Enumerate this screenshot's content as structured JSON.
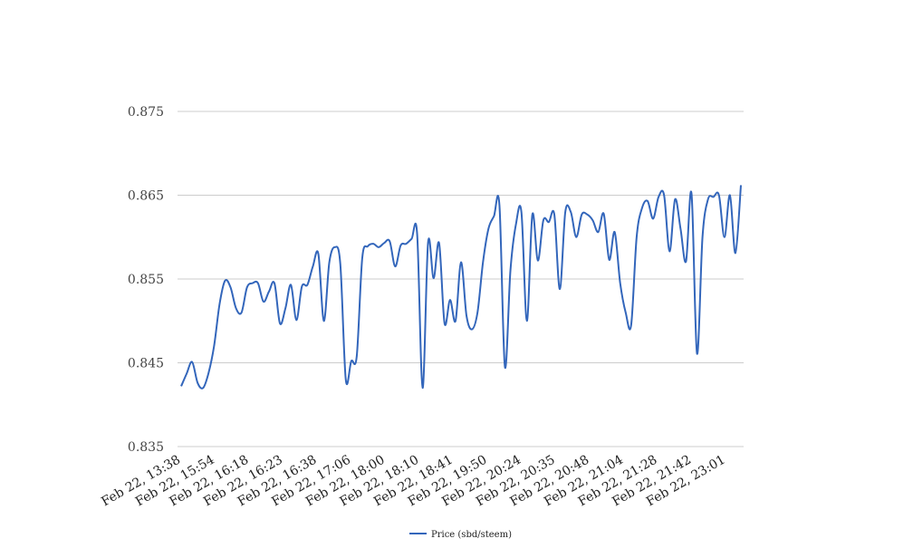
{
  "chart_data": {
    "type": "line",
    "title": "",
    "xlabel": "",
    "ylabel": "",
    "ylim": [
      0.835,
      0.875
    ],
    "yticks": [
      "0.835",
      "0.845",
      "0.855",
      "0.865",
      "0.875"
    ],
    "xtick_labels": [
      "Feb 22, 13:38",
      "Feb 22, 15:54",
      "Feb 22, 16:18",
      "Feb 22, 16:23",
      "Feb 22, 16:38",
      "Feb 22, 17:06",
      "Feb 22, 18:00",
      "Feb 22, 18:10",
      "Feb 22, 18:41",
      "Feb 22, 19:50",
      "Feb 22, 20:24",
      "Feb 22, 20:35",
      "Feb 22, 20:48",
      "Feb 22, 21:04",
      "Feb 22, 21:28",
      "Feb 22, 21:42",
      "Feb 22, 23:01"
    ],
    "grid": true,
    "legend_position": "bottom-center",
    "series": [
      {
        "name": "Price (sbd/steem)",
        "color": "#3366bb",
        "values": [
          0.8422,
          0.8437,
          0.8451,
          0.8426,
          0.842,
          0.8438,
          0.847,
          0.852,
          0.8548,
          0.854,
          0.8515,
          0.851,
          0.854,
          0.8545,
          0.8545,
          0.8523,
          0.8535,
          0.8545,
          0.8497,
          0.8515,
          0.8543,
          0.8501,
          0.8541,
          0.8543,
          0.8565,
          0.858,
          0.85,
          0.857,
          0.8588,
          0.8568,
          0.843,
          0.8452,
          0.8458,
          0.8575,
          0.8589,
          0.8592,
          0.8588,
          0.8593,
          0.8595,
          0.8565,
          0.859,
          0.8592,
          0.8598,
          0.8604,
          0.842,
          0.8594,
          0.8551,
          0.8593,
          0.8497,
          0.8525,
          0.85,
          0.857,
          0.8506,
          0.849,
          0.851,
          0.857,
          0.861,
          0.8625,
          0.8638,
          0.8445,
          0.856,
          0.8615,
          0.863,
          0.85,
          0.8627,
          0.8572,
          0.862,
          0.8618,
          0.8627,
          0.8538,
          0.863,
          0.863,
          0.86,
          0.8627,
          0.8627,
          0.862,
          0.8606,
          0.8628,
          0.8573,
          0.8606,
          0.8545,
          0.851,
          0.8495,
          0.86,
          0.8635,
          0.8643,
          0.8622,
          0.8648,
          0.865,
          0.8583,
          0.8645,
          0.861,
          0.8571,
          0.8652,
          0.8461,
          0.86,
          0.8645,
          0.8648,
          0.865,
          0.86,
          0.865,
          0.8581,
          0.8662
        ]
      }
    ]
  }
}
